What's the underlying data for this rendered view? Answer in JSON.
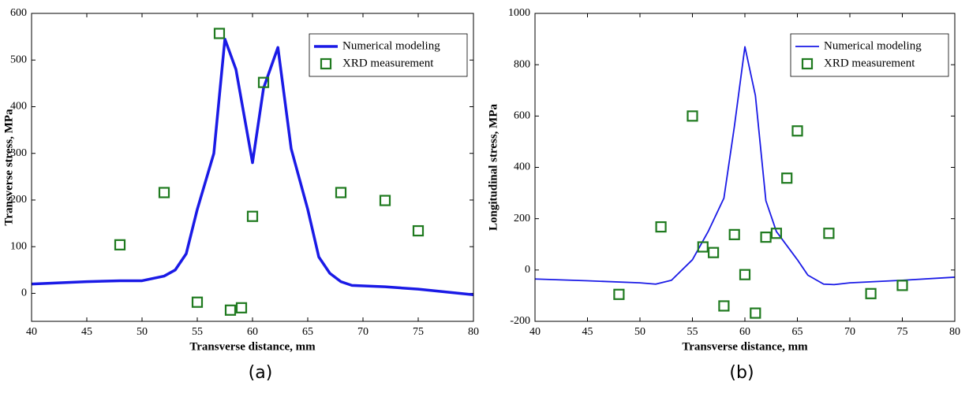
{
  "chart_data": [
    {
      "type": "line",
      "caption": "(a)",
      "xlabel": "Transverse distance, mm",
      "ylabel": "Transverse stress, MPa",
      "xlim": [
        40,
        80
      ],
      "xticks": [
        40,
        45,
        50,
        55,
        60,
        65,
        70,
        75,
        80
      ],
      "ylim": [
        -60,
        600
      ],
      "yticks": [
        0,
        100,
        200,
        300,
        400,
        500,
        600
      ],
      "grid": false,
      "legend": "upper right",
      "series": [
        {
          "name": "Numerical modeling",
          "type": "line",
          "color": "#1a1ae6",
          "linewidth": 3.5,
          "x": [
            40,
            45,
            48,
            50,
            52,
            53,
            54,
            55,
            56.5,
            57.5,
            58.5,
            60,
            61,
            62.3,
            63.5,
            65,
            66,
            67,
            68,
            69,
            72,
            75,
            80
          ],
          "values": [
            20,
            25,
            27,
            27,
            37,
            50,
            85,
            180,
            300,
            545,
            480,
            280,
            440,
            527,
            310,
            180,
            78,
            43,
            25,
            17,
            14,
            9,
            -3
          ]
        },
        {
          "name": "XRD measurement",
          "type": "scatter",
          "color": "#1f7a1f",
          "x": [
            48,
            52,
            55,
            57,
            58,
            59,
            60,
            61,
            68,
            72,
            75
          ],
          "values": [
            104,
            216,
            -19,
            557,
            -36,
            -31,
            165,
            452,
            216,
            199,
            134
          ]
        }
      ]
    },
    {
      "type": "line",
      "caption": "(b)",
      "xlabel": "Transverse distance, mm",
      "ylabel": "Longitudinal stress, MPa",
      "xlim": [
        40,
        80
      ],
      "xticks": [
        40,
        45,
        50,
        55,
        60,
        65,
        70,
        75,
        80
      ],
      "ylim": [
        -200,
        1000
      ],
      "yticks": [
        -200,
        0,
        200,
        400,
        600,
        800,
        1000
      ],
      "grid": false,
      "legend": "upper right",
      "series": [
        {
          "name": "Numerical modeling",
          "type": "line",
          "color": "#1a1ae6",
          "linewidth": 1.8,
          "x": [
            40,
            45,
            50,
            51.5,
            53,
            55,
            56.5,
            58,
            59,
            60,
            61,
            62,
            63,
            65,
            66,
            67.5,
            68.5,
            70,
            75,
            80
          ],
          "values": [
            -35,
            -42,
            -50,
            -55,
            -40,
            40,
            150,
            280,
            560,
            870,
            680,
            270,
            150,
            40,
            -20,
            -55,
            -57,
            -50,
            -40,
            -28
          ]
        },
        {
          "name": "XRD measurement",
          "type": "scatter",
          "color": "#1f7a1f",
          "x": [
            48,
            52,
            55,
            56,
            57,
            58,
            59,
            60,
            61,
            62,
            63,
            64,
            65,
            68,
            72,
            75
          ],
          "values": [
            -95,
            168,
            600,
            90,
            68,
            -140,
            138,
            -18,
            -168,
            128,
            143,
            358,
            542,
            143,
            -92,
            -60
          ]
        }
      ]
    }
  ]
}
